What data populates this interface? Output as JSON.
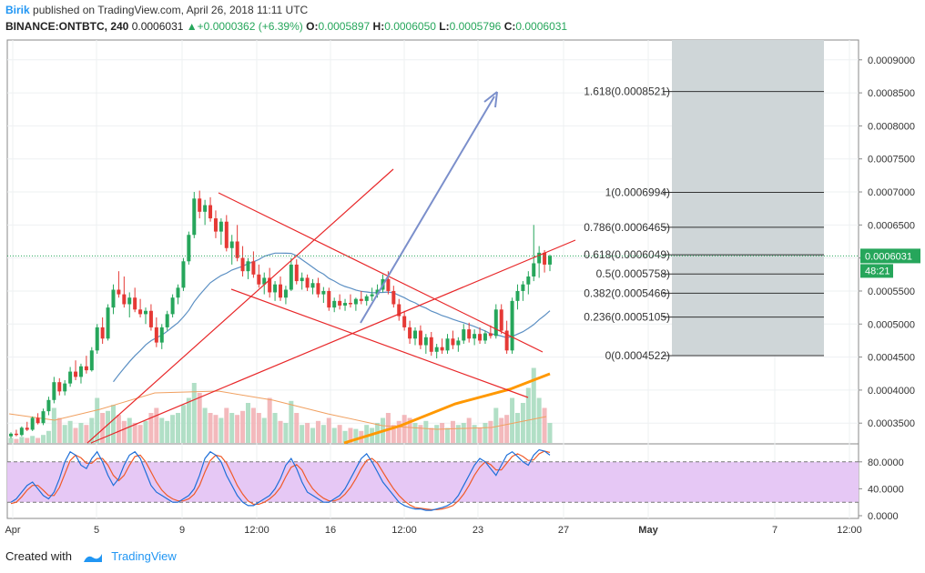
{
  "header": {
    "author": "Birik",
    "published": "published on TradingView.com, April 26, 2018 11:11 UTC",
    "symbol": "BINANCE:ONTBTC, 240",
    "last": "0.0006031",
    "change": "+0.0000362 (+6.39%)",
    "o_label": "O:",
    "o": "0.0005897",
    "h_label": "H:",
    "h": "0.0006050",
    "l_label": "L:",
    "l": "0.0005796",
    "c_label": "C:",
    "c": "0.0006031"
  },
  "footer": {
    "created": "Created with",
    "brand": "TradingView"
  },
  "colors": {
    "up": "#26a65b",
    "down": "#e53935",
    "fib_zone": "#cfd6d8",
    "trend": "#e8282a",
    "arrow": "#7b8fcb",
    "ma_blue": "#5b8fc3",
    "ma_orange": "#ff9800",
    "stoch_band": "#e6c8f5"
  },
  "chart_data": {
    "type": "candlestick",
    "y_ticks": [
      "0.0009000",
      "0.0008500",
      "0.0008000",
      "0.0007500",
      "0.0007000",
      "0.0006500",
      "0.0006000",
      "0.0005500",
      "0.0005000",
      "0.0004500",
      "0.0004000",
      "0.0003500"
    ],
    "ylim": [
      0.00032,
      0.00093
    ],
    "x_ticks": [
      "Apr",
      "5",
      "9",
      "12:00",
      "16",
      "12:00",
      "23",
      "27",
      "May",
      "7",
      "12:00"
    ],
    "price_label": "0.0006031",
    "countdown": "48:21",
    "fib_levels": [
      {
        "label": "1.618(0.0008521)",
        "value": 0.0008521
      },
      {
        "label": "1(0.0006994)",
        "value": 0.0006994
      },
      {
        "label": "0.786(0.0006465)",
        "value": 0.0006465
      },
      {
        "label": "0.618(0.0006049)",
        "value": 0.0006049
      },
      {
        "label": "0.5(0.0005758)",
        "value": 0.0005758
      },
      {
        "label": "0.382(0.0005466)",
        "value": 0.0005466
      },
      {
        "label": "0.236(0.0005105)",
        "value": 0.0005105
      },
      {
        "label": "0(0.0004522)",
        "value": 0.0004522
      }
    ],
    "candles": [
      [
        0.00033,
        0.000336,
        0.000327,
        0.000334
      ],
      [
        0.000334,
        0.00034,
        0.00033,
        0.000332
      ],
      [
        0.000332,
        0.000345,
        0.00033,
        0.000343
      ],
      [
        0.000343,
        0.000352,
        0.000338,
        0.00034
      ],
      [
        0.00034,
        0.00036,
        0.000338,
        0.000358
      ],
      [
        0.000358,
        0.000365,
        0.000348,
        0.00035
      ],
      [
        0.00035,
        0.000372,
        0.000347,
        0.000368
      ],
      [
        0.000368,
        0.00039,
        0.000362,
        0.000385
      ],
      [
        0.000385,
        0.00042,
        0.00038,
        0.000412
      ],
      [
        0.000412,
        0.000418,
        0.000392,
        0.000398
      ],
      [
        0.000398,
        0.000415,
        0.000392,
        0.00041
      ],
      [
        0.00041,
        0.000435,
        0.000405,
        0.000428
      ],
      [
        0.000428,
        0.000445,
        0.000415,
        0.00042
      ],
      [
        0.00042,
        0.00044,
        0.00041,
        0.000436
      ],
      [
        0.000436,
        0.000452,
        0.000425,
        0.00043
      ],
      [
        0.00043,
        0.000465,
        0.000428,
        0.00046
      ],
      [
        0.00046,
        0.0005,
        0.000455,
        0.000495
      ],
      [
        0.000495,
        0.00051,
        0.00047,
        0.000478
      ],
      [
        0.000478,
        0.00053,
        0.000475,
        0.000525
      ],
      [
        0.000525,
        0.00056,
        0.000515,
        0.000552
      ],
      [
        0.000552,
        0.00058,
        0.00054,
        0.000545
      ],
      [
        0.000545,
        0.000572,
        0.000525,
        0.00053
      ],
      [
        0.00053,
        0.000548,
        0.00051,
        0.00054
      ],
      [
        0.00054,
        0.000555,
        0.000518,
        0.000522
      ],
      [
        0.000522,
        0.000538,
        0.00051,
        0.000515
      ],
      [
        0.000515,
        0.000525,
        0.0005,
        0.00052
      ],
      [
        0.00052,
        0.00053,
        0.00049,
        0.000495
      ],
      [
        0.000495,
        0.00051,
        0.000465,
        0.000472
      ],
      [
        0.000472,
        0.0005,
        0.000462,
        0.000495
      ],
      [
        0.000495,
        0.00052,
        0.00049,
        0.000515
      ],
      [
        0.000515,
        0.000545,
        0.00051,
        0.00054
      ],
      [
        0.00054,
        0.00056,
        0.00053,
        0.000555
      ],
      [
        0.000555,
        0.0006,
        0.00055,
        0.000595
      ],
      [
        0.000595,
        0.00064,
        0.00059,
        0.000635
      ],
      [
        0.000635,
        0.0007,
        0.00063,
        0.00069
      ],
      [
        0.00069,
        0.000702,
        0.00066,
        0.00067
      ],
      [
        0.00067,
        0.000688,
        0.00065,
        0.00068
      ],
      [
        0.00068,
        0.000692,
        0.000655,
        0.00066
      ],
      [
        0.00066,
        0.000672,
        0.00063,
        0.00064
      ],
      [
        0.00064,
        0.00066,
        0.00062,
        0.000655
      ],
      [
        0.000655,
        0.000665,
        0.00061,
        0.000615
      ],
      [
        0.000615,
        0.000635,
        0.00059,
        0.000625
      ],
      [
        0.000625,
        0.00065,
        0.000595,
        0.0006
      ],
      [
        0.0006,
        0.000618,
        0.000572,
        0.00058
      ],
      [
        0.00058,
        0.0006,
        0.000568,
        0.000595
      ],
      [
        0.000595,
        0.00061,
        0.00057,
        0.000575
      ],
      [
        0.000575,
        0.00059,
        0.000555,
        0.00056
      ],
      [
        0.00056,
        0.000578,
        0.000545,
        0.00057
      ],
      [
        0.00057,
        0.000585,
        0.00054,
        0.000548
      ],
      [
        0.000548,
        0.000565,
        0.000535,
        0.00056
      ],
      [
        0.00056,
        0.000572,
        0.000535,
        0.00054
      ],
      [
        0.00054,
        0.000558,
        0.00053,
        0.000552
      ],
      [
        0.000552,
        0.0006,
        0.00055,
        0.00059
      ],
      [
        0.00059,
        0.000598,
        0.00056,
        0.000565
      ],
      [
        0.000565,
        0.000578,
        0.000552,
        0.00057
      ],
      [
        0.00057,
        0.000575,
        0.00055,
        0.000555
      ],
      [
        0.000555,
        0.000568,
        0.000545,
        0.000562
      ],
      [
        0.000562,
        0.00057,
        0.00054,
        0.000545
      ],
      [
        0.000545,
        0.000556,
        0.000532,
        0.00055
      ],
      [
        0.00055,
        0.000555,
        0.00052,
        0.000525
      ],
      [
        0.000525,
        0.00054,
        0.000518,
        0.000535
      ],
      [
        0.000535,
        0.000545,
        0.000522,
        0.000528
      ],
      [
        0.000528,
        0.000538,
        0.00052,
        0.000532
      ],
      [
        0.000532,
        0.000545,
        0.000525,
        0.00053
      ],
      [
        0.00053,
        0.00054,
        0.00052,
        0.000538
      ],
      [
        0.000538,
        0.00055,
        0.00053,
        0.000535
      ],
      [
        0.000535,
        0.000545,
        0.000528,
        0.000542
      ],
      [
        0.000542,
        0.000555,
        0.000535,
        0.000545
      ],
      [
        0.000545,
        0.00056,
        0.00054,
        0.000552
      ],
      [
        0.000552,
        0.000575,
        0.000548,
        0.000568
      ],
      [
        0.000568,
        0.00058,
        0.000545,
        0.00055
      ],
      [
        0.00055,
        0.000558,
        0.000525,
        0.00053
      ],
      [
        0.00053,
        0.000538,
        0.000505,
        0.000512
      ],
      [
        0.000512,
        0.00052,
        0.00049,
        0.000495
      ],
      [
        0.000495,
        0.000505,
        0.00047,
        0.000478
      ],
      [
        0.000478,
        0.000495,
        0.000468,
        0.00049
      ],
      [
        0.00049,
        0.000498,
        0.000462,
        0.000468
      ],
      [
        0.000468,
        0.000485,
        0.000455,
        0.00048
      ],
      [
        0.00048,
        0.000488,
        0.000452,
        0.000458
      ],
      [
        0.000458,
        0.00047,
        0.000448,
        0.000465
      ],
      [
        0.000465,
        0.000478,
        0.000455,
        0.00046
      ],
      [
        0.00046,
        0.000485,
        0.000455,
        0.000478
      ],
      [
        0.000478,
        0.00049,
        0.000462,
        0.000468
      ],
      [
        0.000468,
        0.00048,
        0.000458,
        0.000475
      ],
      [
        0.000475,
        0.0005,
        0.00047,
        0.000492
      ],
      [
        0.000492,
        0.000502,
        0.000472,
        0.000478
      ],
      [
        0.000478,
        0.000492,
        0.000468,
        0.000485
      ],
      [
        0.000485,
        0.000495,
        0.00047,
        0.000475
      ],
      [
        0.000475,
        0.00049,
        0.00047,
        0.000486
      ],
      [
        0.000486,
        0.000498,
        0.000478,
        0.000482
      ],
      [
        0.000482,
        0.00053,
        0.000478,
        0.000522
      ],
      [
        0.000522,
        0.00053,
        0.000485,
        0.00049
      ],
      [
        0.00049,
        0.000505,
        0.000455,
        0.00046
      ],
      [
        0.00046,
        0.00054,
        0.000455,
        0.000535
      ],
      [
        0.000535,
        0.00056,
        0.000522,
        0.00055
      ],
      [
        0.00055,
        0.000565,
        0.000535,
        0.00056
      ],
      [
        0.00056,
        0.00058,
        0.000545,
        0.000572
      ],
      [
        0.000572,
        0.00065,
        0.000565,
        0.000592
      ],
      [
        0.000592,
        0.000618,
        0.00057,
        0.000608
      ],
      [
        0.000608,
        0.000612,
        0.000578,
        0.00059
      ],
      [
        0.00059,
        0.000605,
        0.00058,
        0.000603
      ]
    ],
    "volumes": [
      0.05,
      0.04,
      0.06,
      0.05,
      0.07,
      0.05,
      0.08,
      0.12,
      0.35,
      0.25,
      0.18,
      0.22,
      0.15,
      0.2,
      0.18,
      0.25,
      0.45,
      0.3,
      0.32,
      0.38,
      0.28,
      0.22,
      0.25,
      0.2,
      0.18,
      0.22,
      0.3,
      0.35,
      0.25,
      0.22,
      0.28,
      0.3,
      0.38,
      0.45,
      0.6,
      0.5,
      0.35,
      0.3,
      0.28,
      0.25,
      0.35,
      0.3,
      0.28,
      0.32,
      0.4,
      0.35,
      0.3,
      0.25,
      0.45,
      0.3,
      0.22,
      0.2,
      0.42,
      0.3,
      0.18,
      0.2,
      0.15,
      0.22,
      0.18,
      0.25,
      0.15,
      0.18,
      0.12,
      0.15,
      0.14,
      0.12,
      0.18,
      0.15,
      0.2,
      0.25,
      0.3,
      0.18,
      0.22,
      0.28,
      0.25,
      0.2,
      0.18,
      0.22,
      0.15,
      0.18,
      0.2,
      0.15,
      0.22,
      0.18,
      0.2,
      0.25,
      0.18,
      0.15,
      0.2,
      0.22,
      0.35,
      0.25,
      0.28,
      0.45,
      0.3,
      0.4,
      0.55,
      0.75,
      0.45,
      0.35,
      0.2
    ]
  },
  "stoch": {
    "y_ticks": [
      "80.0000",
      "40.0000",
      "0.0000"
    ],
    "k": [
      20,
      25,
      35,
      45,
      50,
      40,
      30,
      25,
      35,
      55,
      80,
      95,
      90,
      75,
      70,
      85,
      95,
      80,
      60,
      45,
      55,
      75,
      90,
      95,
      85,
      65,
      45,
      35,
      30,
      25,
      20,
      20,
      25,
      30,
      40,
      60,
      85,
      95,
      90,
      80,
      60,
      45,
      30,
      20,
      15,
      15,
      20,
      25,
      30,
      40,
      55,
      75,
      85,
      70,
      50,
      35,
      30,
      25,
      20,
      20,
      25,
      30,
      40,
      55,
      70,
      85,
      92,
      80,
      65,
      50,
      40,
      30,
      20,
      15,
      12,
      10,
      10,
      8,
      8,
      10,
      12,
      15,
      20,
      30,
      45,
      60,
      75,
      85,
      80,
      70,
      60,
      75,
      90,
      95,
      88,
      80,
      75,
      90,
      98,
      96,
      90
    ],
    "d": [
      18,
      20,
      28,
      38,
      45,
      45,
      38,
      30,
      30,
      42,
      62,
      82,
      90,
      86,
      78,
      78,
      85,
      85,
      75,
      60,
      52,
      60,
      75,
      88,
      90,
      80,
      65,
      50,
      38,
      30,
      25,
      22,
      22,
      25,
      32,
      45,
      65,
      82,
      90,
      88,
      78,
      62,
      45,
      32,
      22,
      17,
      17,
      20,
      25,
      32,
      42,
      58,
      72,
      76,
      68,
      52,
      40,
      32,
      26,
      22,
      22,
      25,
      32,
      42,
      55,
      70,
      82,
      85,
      78,
      65,
      52,
      40,
      30,
      22,
      16,
      12,
      11,
      10,
      9,
      9,
      10,
      12,
      15,
      22,
      32,
      45,
      60,
      72,
      80,
      76,
      68,
      68,
      78,
      88,
      92,
      88,
      82,
      83,
      92,
      96,
      94
    ]
  }
}
